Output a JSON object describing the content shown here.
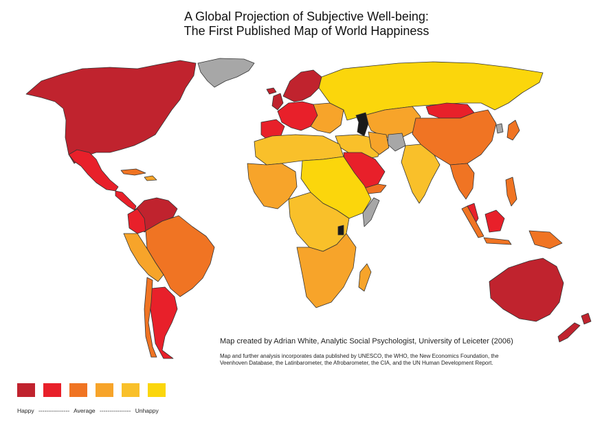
{
  "title": {
    "line1": "A Global Projection of Subjective Well-being:",
    "line2": "The First Published Map of World Happiness"
  },
  "credit": "Map created by Adrian White, Analytic Social Psychologist, University of Leiceter (2006)",
  "note": "Map and further analysis incorporates data published by UNESCO, the WHO, the New Economics Foundation, the Veenhoven Database, the Latinbarometer, the Afrobarometer, the CIA, and the UN Human Development Report.",
  "legend": {
    "colors": [
      "#c0232e",
      "#e8202a",
      "#f07423",
      "#f7a42a",
      "#f9c02a",
      "#fbd60c"
    ],
    "label_happy": "Happy",
    "dash1": "----------------",
    "label_average": "Average",
    "dash2": "----------------",
    "label_unhappy": "Unhappy"
  },
  "colors": {
    "no_data": "#a7a7a7",
    "other": "#1a1a1a"
  }
}
